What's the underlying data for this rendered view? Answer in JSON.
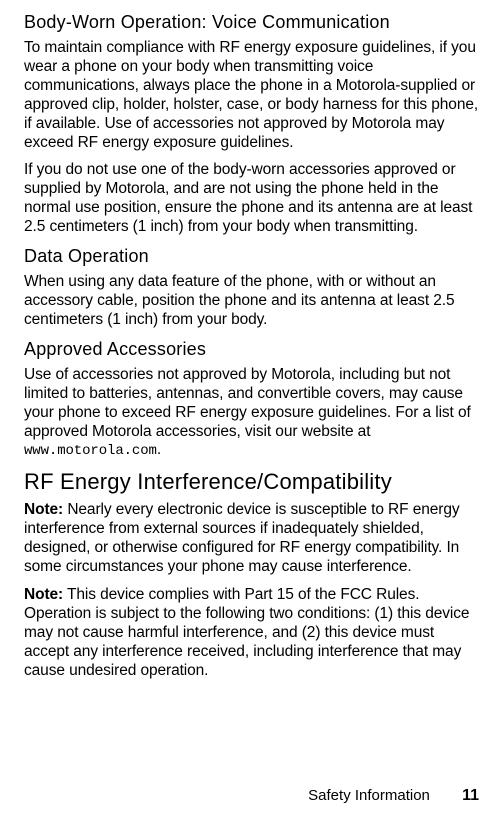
{
  "sections": {
    "bodyworn": {
      "heading": "Body-Worn Operation: Voice Communication",
      "p1": "To maintain compliance with RF energy exposure guidelines, if you wear a phone on your body when transmitting voice communications, always place the phone in a Motorola-supplied or approved clip, holder, holster, case, or body harness for this phone, if available. Use of accessories not approved by Motorola may exceed RF energy exposure guidelines.",
      "p2": "If you do not use one of the body-worn accessories approved or supplied by Motorola, and are not using the phone held in the normal use position, ensure the phone and its antenna are at least 2.5 centimeters (1 inch) from your body when transmitting."
    },
    "dataop": {
      "heading": "Data Operation",
      "p1": "When using any data feature of the phone, with or without an accessory cable, position the phone and its antenna at least 2.5 centimeters (1 inch) from your body."
    },
    "approved": {
      "heading": "Approved Accessories",
      "p1_pre": "Use of accessories not approved by Motorola, including but not limited to batteries, antennas, and convertible covers, may cause your phone to exceed RF energy exposure guidelines. For a list of approved Motorola accessories, visit our website at ",
      "url": "www.motorola.com",
      "p1_post": "."
    },
    "rf": {
      "heading": "RF Energy Interference/Compatibility",
      "note1_label": "Note:",
      "note1_text": " Nearly every electronic device is susceptible to RF energy interference from external sources if inadequately shielded, designed, or otherwise configured for RF energy compatibility. In some circumstances your phone may cause interference.",
      "note2_label": "Note:",
      "note2_text": " This device complies with Part 15 of the FCC Rules. Operation is subject to the following two conditions: (1) this device may not cause harmful interference, and (2) this device must accept any interference received, including interference that may cause undesired operation."
    }
  },
  "footer": {
    "section_title": "Safety Information",
    "page_number": "11"
  }
}
